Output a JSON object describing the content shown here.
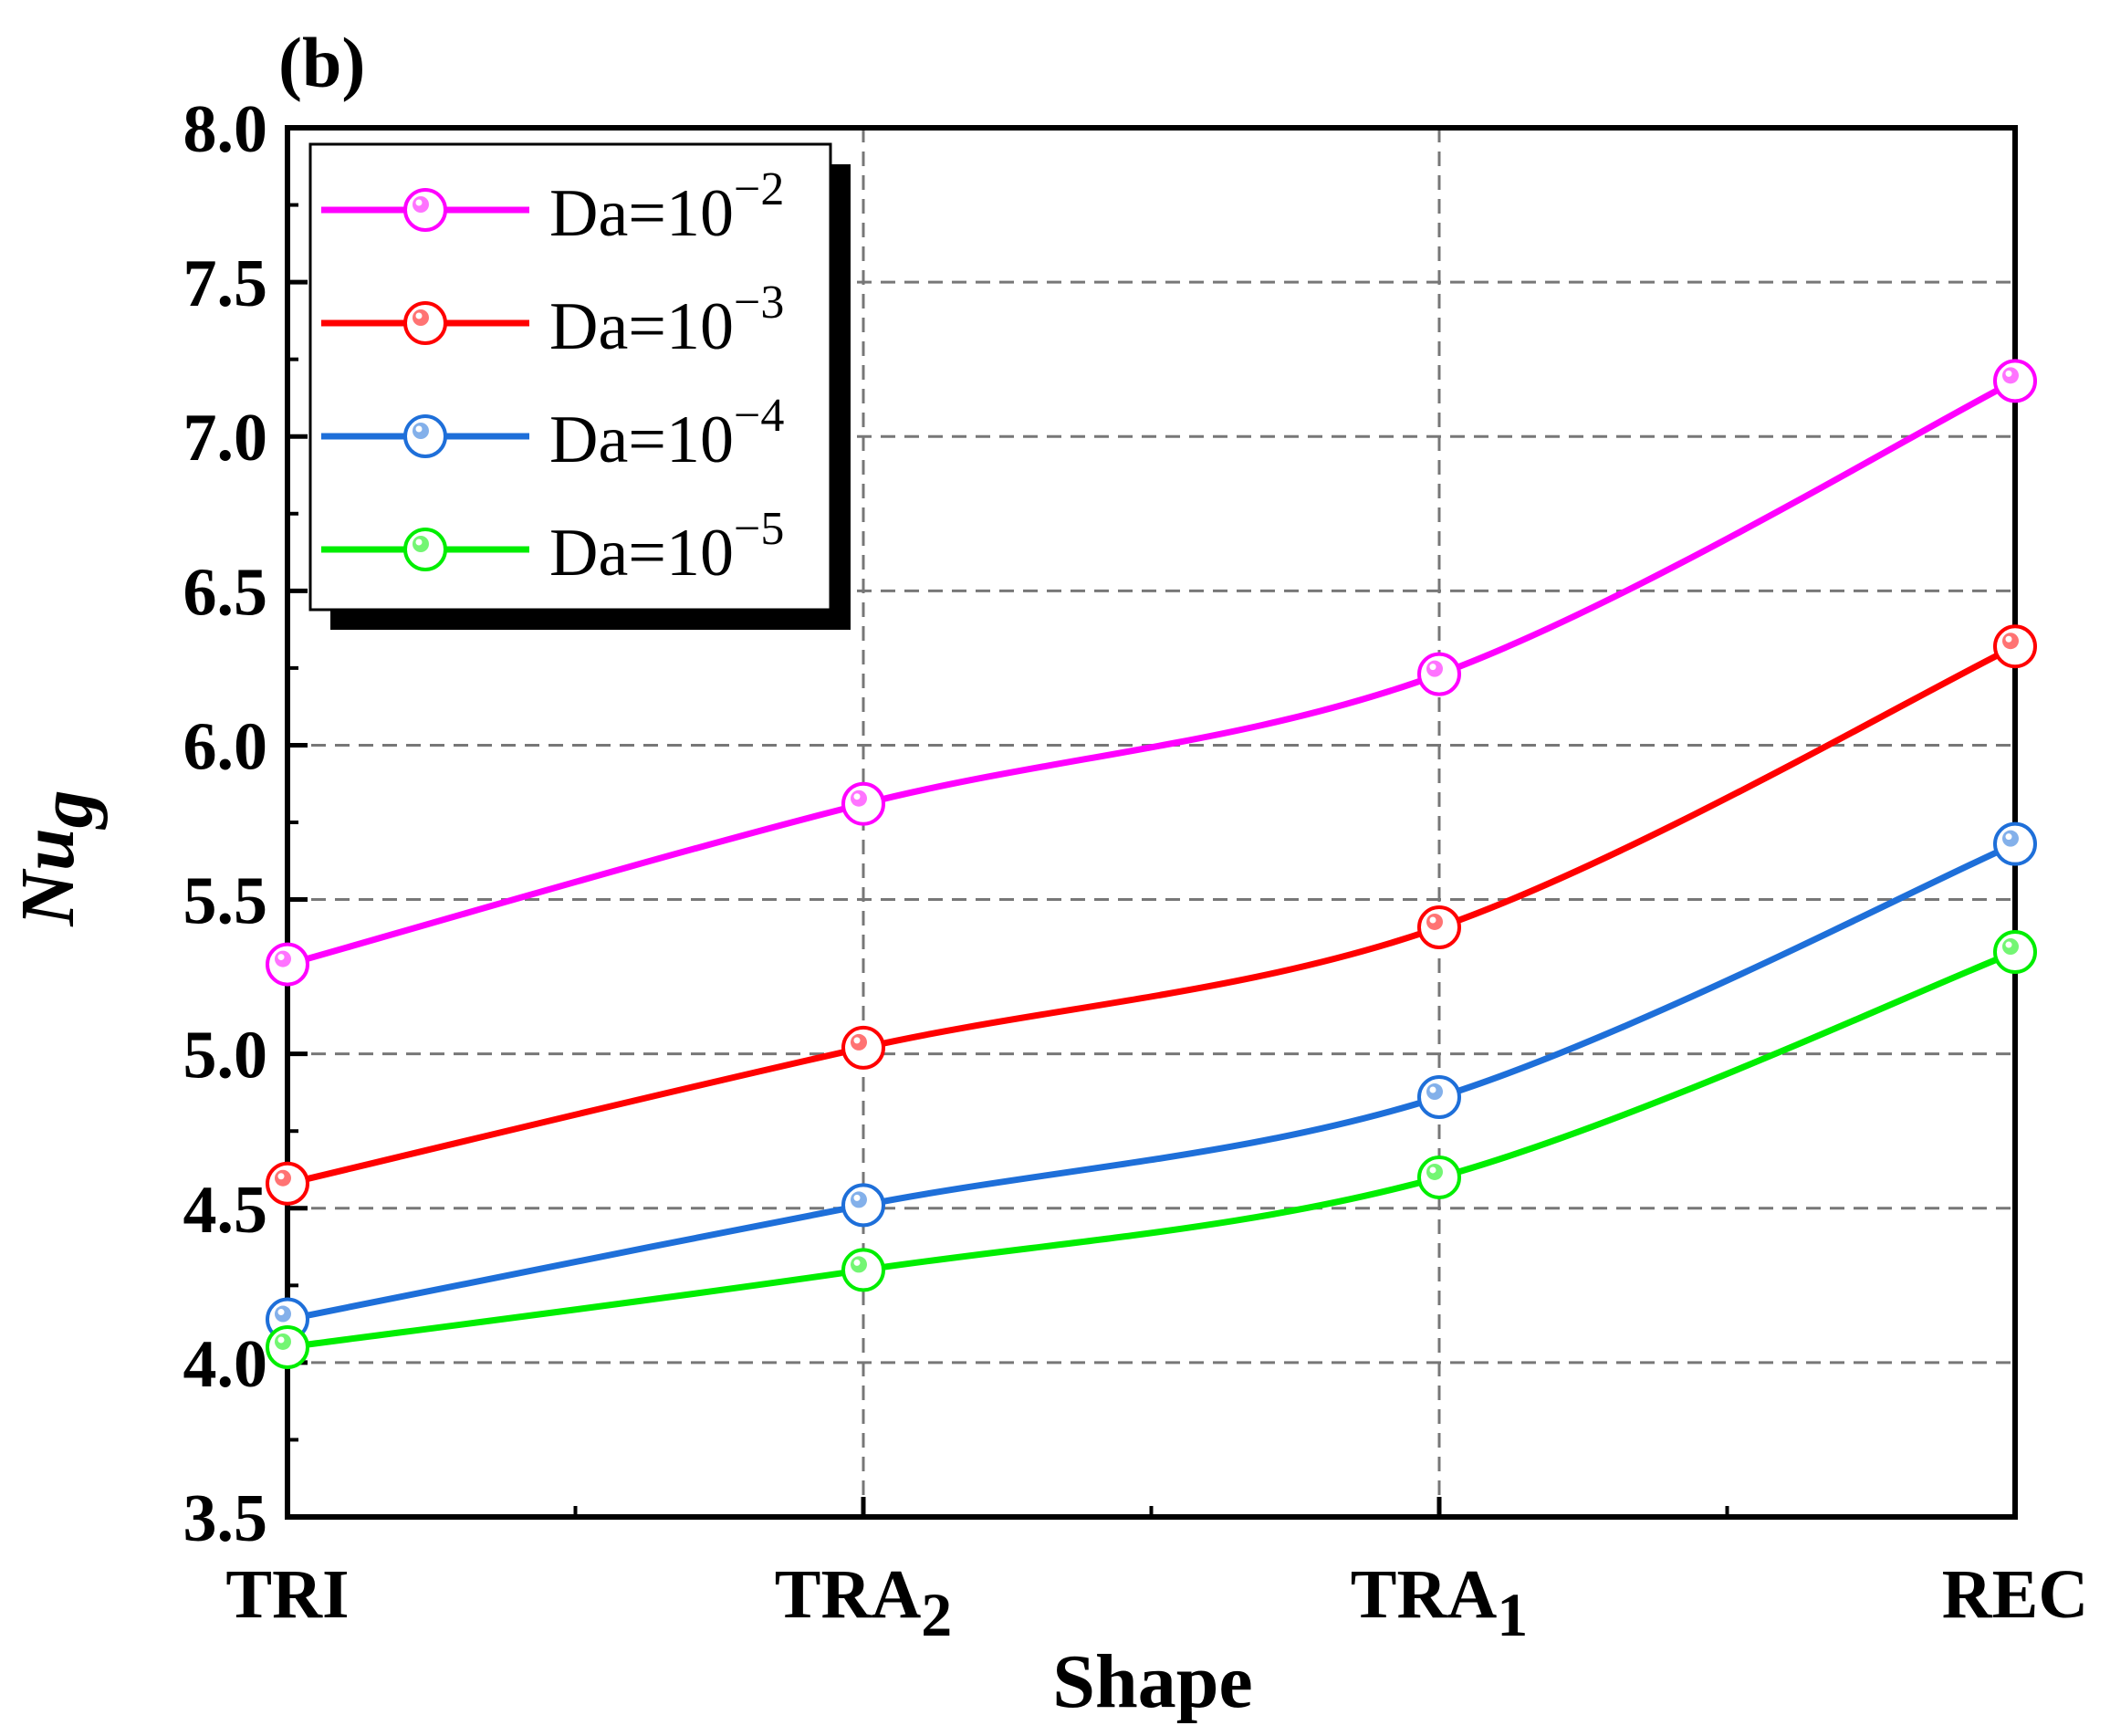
{
  "panel_label": "(b)",
  "chart_data": {
    "type": "line",
    "title": "",
    "xlabel": "Shape",
    "ylabel": {
      "main": "Nu",
      "sub": "g"
    },
    "categories": [
      {
        "main": "TRI",
        "sub": ""
      },
      {
        "main": "TRA",
        "sub": "2"
      },
      {
        "main": "TRA",
        "sub": "1"
      },
      {
        "main": "REC",
        "sub": ""
      }
    ],
    "ylim": [
      3.5,
      8.0
    ],
    "yticks": [
      "3.5",
      "4.0",
      "4.5",
      "5.0",
      "5.5",
      "6.0",
      "6.5",
      "7.0",
      "7.5",
      "8.0"
    ],
    "grid": true,
    "legend_position": "top-left",
    "smooth": true,
    "series": [
      {
        "name": "Da=10",
        "exp": "−2",
        "color": "#ff00ff",
        "values": [
          5.29,
          5.81,
          6.23,
          7.18
        ]
      },
      {
        "name": "Da=10",
        "exp": "−3",
        "color": "#ff0000",
        "values": [
          4.58,
          5.02,
          5.41,
          6.32
        ]
      },
      {
        "name": "Da=10",
        "exp": "−4",
        "color": "#1e6fd9",
        "values": [
          4.14,
          4.51,
          4.86,
          5.68
        ]
      },
      {
        "name": "Da=10",
        "exp": "−5",
        "color": "#00ee00",
        "values": [
          4.05,
          4.3,
          4.6,
          5.33
        ]
      }
    ]
  }
}
